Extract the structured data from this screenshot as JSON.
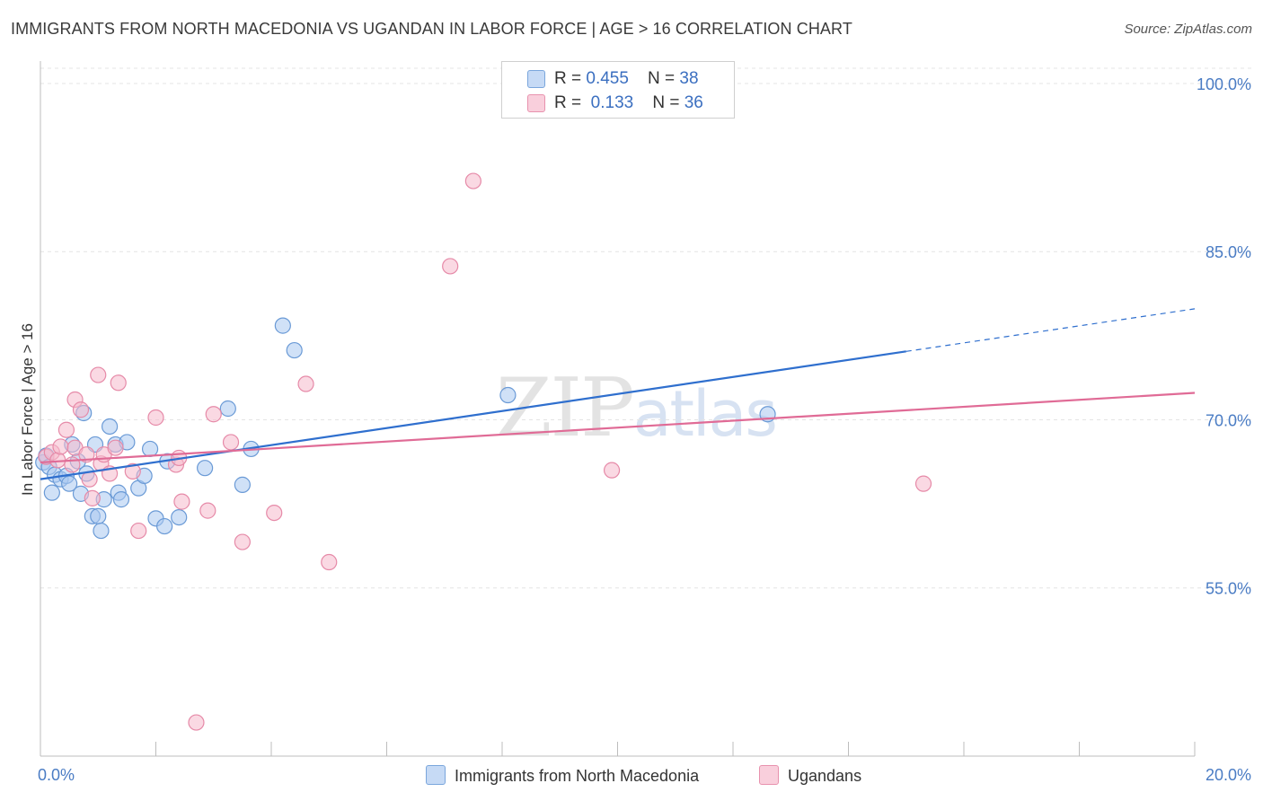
{
  "header": {
    "title": "IMMIGRANTS FROM NORTH MACEDONIA VS UGANDAN IN LABOR FORCE | AGE > 16 CORRELATION CHART",
    "source": "Source: ZipAtlas.com"
  },
  "watermark": {
    "zip": "ZIP",
    "atlas": "atlas"
  },
  "legend": {
    "rows": [
      {
        "r_label": "R = ",
        "r_value": "0.455",
        "n_label": "N = ",
        "n_value": "38"
      },
      {
        "r_label": "R = ",
        "r_value": "0.133",
        "n_label": "N = ",
        "n_value": "36"
      }
    ]
  },
  "colors": {
    "blue_fill": "#a9c8f0",
    "blue_stroke": "#6a9ad6",
    "blue_line": "#2f6fce",
    "pink_fill": "#f6b9cc",
    "pink_stroke": "#e68aa8",
    "pink_line": "#e06b96",
    "grid": "#e4e4e4"
  },
  "chart_data": {
    "type": "scatter",
    "title": "IMMIGRANTS FROM NORTH MACEDONIA VS UGANDAN IN LABOR FORCE | AGE > 16 CORRELATION CHART",
    "xlabel": "",
    "ylabel": "In Labor Force | Age > 16",
    "xlim": [
      0.0,
      20.0
    ],
    "ylim": [
      40.0,
      102.0
    ],
    "x_tick_labels": [
      "0.0%",
      "20.0%"
    ],
    "y_ticks": [
      55.0,
      70.0,
      85.0,
      100.0
    ],
    "y_tick_labels": [
      "55.0%",
      "70.0%",
      "85.0%",
      "100.0%"
    ],
    "grid": "horizontal dashed",
    "legend_position": "top-center",
    "series": [
      {
        "name": "Immigrants from North Macedonia",
        "color": "#a9c8f0",
        "R": 0.455,
        "N": 38,
        "trend": {
          "x0": 0.0,
          "y0": 64.7,
          "x1": 15.0,
          "y1": 76.1,
          "dashed_to_x": 20.0,
          "dashed_to_y": 79.9
        },
        "points": [
          [
            0.05,
            66.2
          ],
          [
            0.1,
            66.8
          ],
          [
            0.15,
            65.8
          ],
          [
            0.2,
            63.5
          ],
          [
            0.25,
            65.1
          ],
          [
            0.35,
            64.7
          ],
          [
            0.45,
            65.0
          ],
          [
            0.5,
            64.3
          ],
          [
            0.55,
            67.8
          ],
          [
            0.65,
            66.3
          ],
          [
            0.7,
            63.4
          ],
          [
            0.75,
            70.6
          ],
          [
            0.8,
            65.2
          ],
          [
            0.9,
            61.4
          ],
          [
            0.95,
            67.8
          ],
          [
            1.0,
            61.4
          ],
          [
            1.05,
            60.1
          ],
          [
            1.1,
            62.9
          ],
          [
            1.2,
            69.4
          ],
          [
            1.3,
            67.8
          ],
          [
            1.35,
            63.5
          ],
          [
            1.4,
            62.9
          ],
          [
            1.5,
            68.0
          ],
          [
            1.7,
            63.9
          ],
          [
            1.8,
            65.0
          ],
          [
            1.9,
            67.4
          ],
          [
            2.0,
            61.2
          ],
          [
            2.15,
            60.5
          ],
          [
            2.2,
            66.3
          ],
          [
            2.4,
            61.3
          ],
          [
            2.85,
            65.7
          ],
          [
            3.25,
            71.0
          ],
          [
            3.5,
            64.2
          ],
          [
            3.65,
            67.4
          ],
          [
            4.2,
            78.4
          ],
          [
            4.4,
            76.2
          ],
          [
            8.1,
            72.2
          ],
          [
            12.6,
            70.5
          ]
        ]
      },
      {
        "name": "Ugandans",
        "color": "#f6b9cc",
        "R": 0.133,
        "N": 36,
        "trend": {
          "x0": 0.0,
          "y0": 66.2,
          "x1": 20.0,
          "y1": 72.4
        },
        "points": [
          [
            0.1,
            66.7
          ],
          [
            0.2,
            67.1
          ],
          [
            0.3,
            66.4
          ],
          [
            0.35,
            67.6
          ],
          [
            0.45,
            69.1
          ],
          [
            0.55,
            66.0
          ],
          [
            0.6,
            67.5
          ],
          [
            0.6,
            71.8
          ],
          [
            0.7,
            70.9
          ],
          [
            0.8,
            66.9
          ],
          [
            0.85,
            64.7
          ],
          [
            0.9,
            63.0
          ],
          [
            1.0,
            74.0
          ],
          [
            1.05,
            66.1
          ],
          [
            1.1,
            66.9
          ],
          [
            1.2,
            65.2
          ],
          [
            1.3,
            67.5
          ],
          [
            1.35,
            73.3
          ],
          [
            1.6,
            65.4
          ],
          [
            1.7,
            60.1
          ],
          [
            2.0,
            70.2
          ],
          [
            2.35,
            66.0
          ],
          [
            2.4,
            66.6
          ],
          [
            2.45,
            62.7
          ],
          [
            2.7,
            43.0
          ],
          [
            2.9,
            61.9
          ],
          [
            3.0,
            70.5
          ],
          [
            3.3,
            68.0
          ],
          [
            3.5,
            59.1
          ],
          [
            4.05,
            61.7
          ],
          [
            4.6,
            73.2
          ],
          [
            5.0,
            57.3
          ],
          [
            7.1,
            83.7
          ],
          [
            7.5,
            91.3
          ],
          [
            9.9,
            65.5
          ],
          [
            15.3,
            64.3
          ]
        ]
      }
    ]
  }
}
